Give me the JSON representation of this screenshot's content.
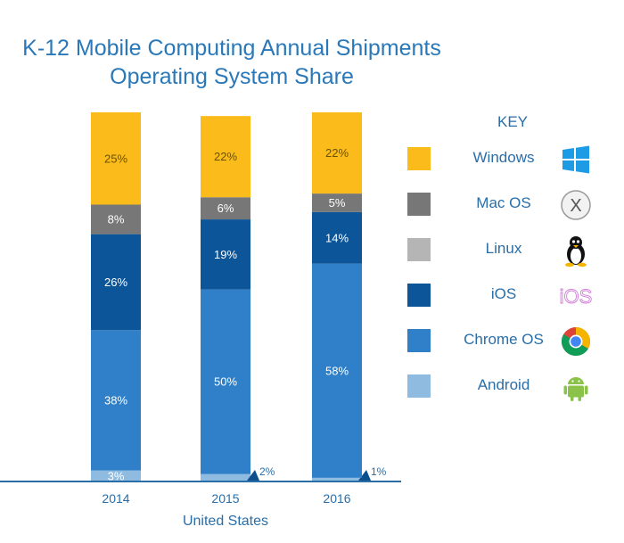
{
  "title_lines": [
    "K-12 Mobile Computing Annual Shipments",
    "Operating System Share"
  ],
  "key_label": "KEY",
  "legend": [
    {
      "name": "Windows",
      "color": "#fbbc1b",
      "icon": "windows-logo-icon"
    },
    {
      "name": "Mac OS",
      "color": "#777777",
      "icon": "macos-x-icon"
    },
    {
      "name": "Linux",
      "color": "#b5b5b5",
      "icon": "linux-penguin-icon"
    },
    {
      "name": "iOS",
      "color": "#0d5599",
      "icon": "ios-icon"
    },
    {
      "name": "Chrome OS",
      "color": "#2f80c8",
      "icon": "chrome-icon"
    },
    {
      "name": "Android",
      "color": "#8fbbe0",
      "icon": "android-icon"
    }
  ],
  "icon_texts": {
    "ios": "iOS",
    "macos": "X"
  },
  "chart_data": {
    "type": "bar",
    "stacked": true,
    "title": "K-12 Mobile Computing Annual Shipments Operating System Share",
    "xlabel": "United States",
    "ylabel": "",
    "categories": [
      "2014",
      "2015",
      "2016"
    ],
    "ylim": [
      0,
      100
    ],
    "series": [
      {
        "name": "Android",
        "color": "#8fbbe0",
        "values": [
          3,
          2,
          1
        ],
        "labels": [
          "3%",
          "2%",
          "1%"
        ]
      },
      {
        "name": "Chrome OS",
        "color": "#2f80c8",
        "values": [
          38,
          50,
          58
        ],
        "labels": [
          "38%",
          "50%",
          "58%"
        ]
      },
      {
        "name": "iOS",
        "color": "#0d5599",
        "values": [
          26,
          19,
          14
        ],
        "labels": [
          "26%",
          "19%",
          "14%"
        ]
      },
      {
        "name": "Linux",
        "color": "#b5b5b5",
        "values": [
          0,
          0,
          0
        ],
        "labels": [
          "",
          "",
          ""
        ]
      },
      {
        "name": "Mac OS",
        "color": "#777777",
        "values": [
          8,
          6,
          5
        ],
        "labels": [
          "8%",
          "6%",
          "5%"
        ]
      },
      {
        "name": "Windows",
        "color": "#fbbc1b",
        "values": [
          25,
          22,
          22
        ],
        "labels": [
          "25%",
          "22%",
          "22%"
        ]
      }
    ]
  }
}
